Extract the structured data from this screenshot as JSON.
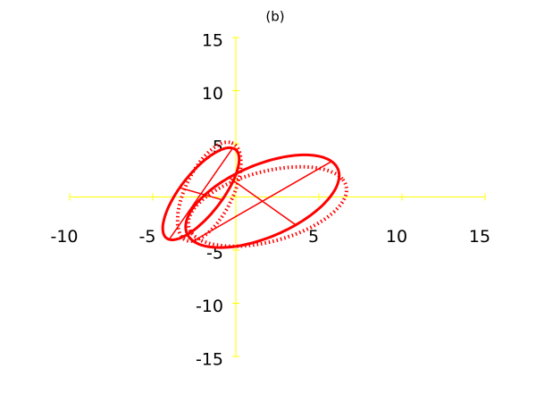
{
  "chart_data": {
    "type": "ellipse",
    "title": "(b)",
    "xlim": [
      -10,
      15
    ],
    "ylim": [
      -15,
      15
    ],
    "xticks": [
      -10,
      -5,
      5,
      10,
      15
    ],
    "yticks": [
      -15,
      -10,
      -5,
      5,
      10,
      15
    ],
    "axis_color": "#ffff00",
    "series": [
      {
        "color": "#ff0000",
        "style": "solid",
        "cx": -2.1,
        "cy": 0.3,
        "a": 4.7,
        "b": 1.4,
        "angle": 66
      },
      {
        "color": "#ff0000",
        "style": "solid",
        "cx": 1.6,
        "cy": -0.4,
        "a": 5.6,
        "b": 3.0,
        "angle": 42
      },
      {
        "color": "#ff0000",
        "style": "dotted",
        "cx": -1.6,
        "cy": 0.5,
        "a": 4.8,
        "b": 1.5,
        "angle": 75
      },
      {
        "color": "#ff0000",
        "style": "dotted",
        "cx": 1.9,
        "cy": -0.9,
        "a": 5.2,
        "b": 3.1,
        "angle": 30
      }
    ]
  }
}
